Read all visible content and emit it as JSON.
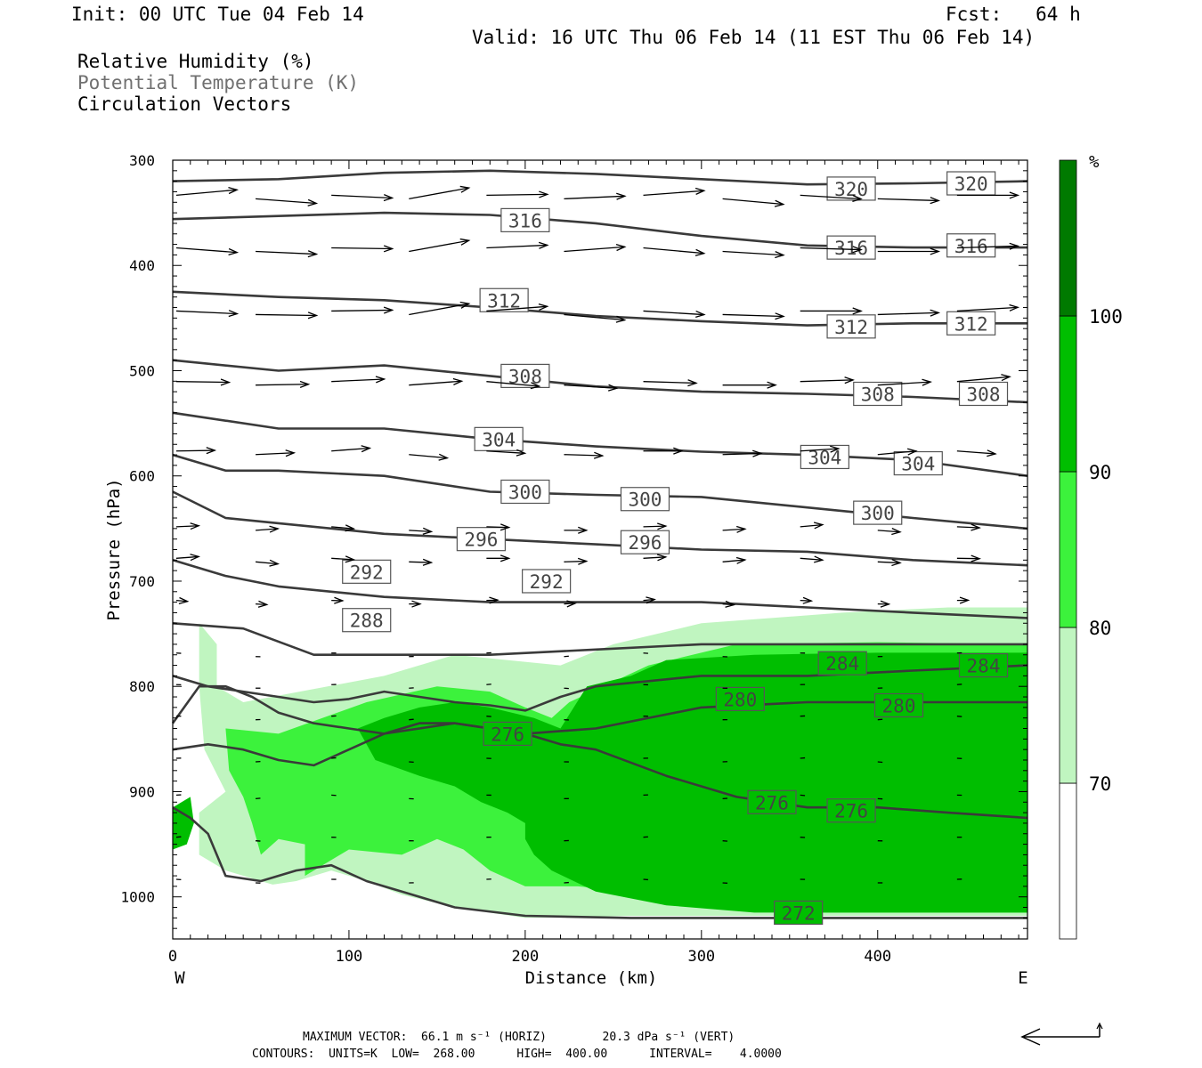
{
  "header": {
    "init": "Init: 00 UTC Tue 04 Feb 14",
    "fcst": "Fcst:   64 h",
    "valid": "Valid: 16 UTC Thu 06 Feb 14 (11 EST Thu 06 Feb 14)",
    "fields": [
      "Relative Humidity (%)",
      "Potential Temperature (K)",
      "Circulation Vectors"
    ]
  },
  "footer": {
    "max_vector": "MAXIMUM VECTOR:  66.1 m s⁻¹ (HORIZ)        20.3 dPa s⁻¹ (VERT)",
    "contours": "CONTOURS:  UNITS=K  LOW=  268.00      HIGH=  400.00      INTERVAL=    4.0000"
  },
  "chart_data": {
    "type": "cross-section",
    "xlabel": "Distance (km)",
    "ylabel": "Pressure (hPa)",
    "xlim": [
      0,
      485
    ],
    "ylim": [
      300,
      1040
    ],
    "y_inverted": true,
    "x_ticks": [
      0,
      100,
      200,
      300,
      400
    ],
    "y_ticks": [
      300,
      400,
      500,
      600,
      700,
      800,
      900,
      1000
    ],
    "x_end_labels": [
      "W",
      "E"
    ],
    "colorbar": {
      "unit": "%",
      "levels": [
        70,
        80,
        90,
        100
      ],
      "colors": [
        "#ffffff",
        "#c0f5c0",
        "#3cf23c",
        "#00be00",
        "#007a00"
      ]
    },
    "colors": {
      "rh_70": "#c0f5c0",
      "rh_80": "#3cf23c",
      "rh_90": "#00be00",
      "theta": "#3a3a3a"
    },
    "theta_contours": [
      {
        "value": 320,
        "x": [
          0,
          60,
          120,
          180,
          240,
          300,
          360,
          420,
          485
        ],
        "p": [
          320,
          318,
          312,
          310,
          313,
          318,
          323,
          322,
          320
        ],
        "labels": [
          [
            385,
            327
          ],
          [
            453,
            322
          ]
        ]
      },
      {
        "value": 316,
        "x": [
          0,
          60,
          120,
          180,
          240,
          300,
          360,
          420,
          485
        ],
        "p": [
          356,
          353,
          350,
          352,
          360,
          372,
          381,
          383,
          383
        ],
        "labels": [
          [
            200,
            357
          ],
          [
            385,
            383
          ],
          [
            453,
            381
          ]
        ]
      },
      {
        "value": 312,
        "x": [
          0,
          60,
          120,
          180,
          240,
          300,
          360,
          420,
          485
        ],
        "p": [
          425,
          430,
          433,
          440,
          448,
          453,
          457,
          455,
          455
        ],
        "labels": [
          [
            188,
            433
          ],
          [
            385,
            458
          ],
          [
            453,
            455
          ]
        ]
      },
      {
        "value": 308,
        "x": [
          0,
          60,
          120,
          180,
          240,
          300,
          360,
          420,
          485
        ],
        "p": [
          490,
          500,
          495,
          505,
          515,
          520,
          522,
          525,
          530
        ],
        "labels": [
          [
            200,
            505
          ],
          [
            400,
            522
          ],
          [
            460,
            522
          ]
        ]
      },
      {
        "value": 304,
        "x": [
          0,
          60,
          120,
          180,
          240,
          300,
          360,
          420,
          485
        ],
        "p": [
          540,
          555,
          555,
          565,
          572,
          577,
          580,
          585,
          600
        ],
        "labels": [
          [
            185,
            565
          ],
          [
            370,
            582
          ],
          [
            423,
            588
          ]
        ]
      },
      {
        "value": 300,
        "x": [
          0,
          30,
          60,
          120,
          180,
          240,
          300,
          360,
          420,
          485
        ],
        "p": [
          580,
          595,
          595,
          600,
          615,
          618,
          620,
          630,
          640,
          650
        ],
        "labels": [
          [
            200,
            615
          ],
          [
            268,
            622
          ],
          [
            400,
            635
          ]
        ]
      },
      {
        "value": 296,
        "x": [
          0,
          30,
          60,
          120,
          180,
          240,
          300,
          360,
          420,
          485
        ],
        "p": [
          615,
          640,
          645,
          655,
          660,
          665,
          670,
          672,
          680,
          685
        ],
        "labels": [
          [
            175,
            660
          ],
          [
            268,
            663
          ]
        ]
      },
      {
        "value": 292,
        "x": [
          0,
          30,
          60,
          120,
          180,
          240,
          300,
          360,
          420,
          485
        ],
        "p": [
          680,
          695,
          705,
          715,
          720,
          720,
          720,
          725,
          730,
          735
        ],
        "labels": [
          [
            110,
            691
          ],
          [
            212,
            700
          ]
        ]
      },
      {
        "value": 288,
        "x": [
          0,
          40,
          80,
          120,
          180,
          240,
          300,
          360,
          420,
          485
        ],
        "p": [
          740,
          745,
          770,
          770,
          770,
          765,
          760,
          760,
          760,
          760
        ],
        "labels": [
          [
            110,
            737
          ]
        ]
      },
      {
        "value": 284,
        "x": [
          0,
          20,
          40,
          60,
          80,
          100,
          120,
          140,
          160,
          180,
          200,
          220,
          240,
          300,
          360,
          420,
          485
        ],
        "p": [
          790,
          800,
          805,
          810,
          815,
          812,
          805,
          810,
          815,
          818,
          823,
          810,
          800,
          790,
          790,
          785,
          780
        ],
        "labels": [
          [
            380,
            778
          ],
          [
            460,
            780
          ]
        ]
      },
      {
        "value": 280,
        "x": [
          0,
          15,
          30,
          45,
          60,
          80,
          100,
          120,
          140,
          160,
          180,
          200,
          240,
          300,
          360,
          420,
          485
        ],
        "p": [
          835,
          800,
          800,
          810,
          825,
          835,
          840,
          845,
          840,
          835,
          840,
          845,
          840,
          820,
          815,
          815,
          815
        ],
        "labels": [
          [
            322,
            812
          ],
          [
            412,
            818
          ]
        ]
      },
      {
        "value": 276,
        "x": [
          0,
          20,
          40,
          60,
          80,
          100,
          120,
          140,
          160,
          180,
          200,
          220,
          240,
          280,
          320,
          360,
          400,
          440,
          485
        ],
        "p": [
          860,
          855,
          860,
          870,
          875,
          860,
          845,
          835,
          835,
          840,
          845,
          855,
          860,
          885,
          905,
          915,
          915,
          920,
          925
        ],
        "labels": [
          [
            190,
            845
          ],
          [
            340,
            910
          ],
          [
            385,
            918
          ]
        ]
      },
      {
        "value": 272,
        "x": [
          0,
          10,
          20,
          30,
          50,
          70,
          90,
          110,
          130,
          160,
          200,
          260,
          320,
          360,
          400,
          485
        ],
        "p": [
          915,
          925,
          940,
          980,
          985,
          975,
          970,
          985,
          995,
          1010,
          1018,
          1020,
          1020,
          1020,
          1020,
          1020
        ],
        "labels": [
          [
            355,
            1015
          ]
        ]
      }
    ],
    "vector_note": "Circulation vectors point predominantly eastward; strongest winds aloft (300-500 hPa), weak below 700 hPa."
  }
}
